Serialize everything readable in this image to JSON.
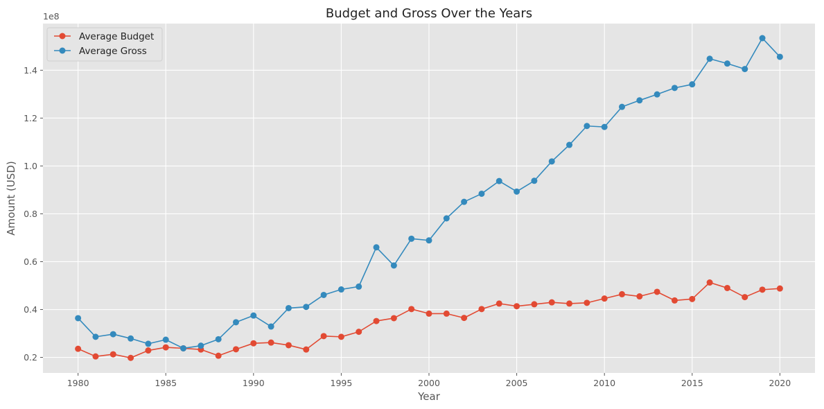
{
  "chart_data": {
    "type": "line",
    "title": "Budget and Gross Over the Years",
    "xlabel": "Year",
    "ylabel": "Amount (USD)",
    "y_offset_text": "1e8",
    "xlim": [
      1978.0,
      2022.0
    ],
    "ylim": [
      13500000,
      159500000
    ],
    "x_ticks": [
      1980,
      1985,
      1990,
      1995,
      2000,
      2005,
      2010,
      2015,
      2020
    ],
    "y_ticks": [
      20000000,
      40000000,
      60000000,
      80000000,
      100000000,
      120000000,
      140000000
    ],
    "y_tick_labels": [
      "0.2",
      "0.4",
      "0.6",
      "0.8",
      "1.0",
      "1.2",
      "1.4"
    ],
    "grid": true,
    "legend_position": "top-left",
    "x": [
      1980,
      1981,
      1982,
      1983,
      1984,
      1985,
      1986,
      1987,
      1988,
      1989,
      1990,
      1991,
      1992,
      1993,
      1994,
      1995,
      1996,
      1997,
      1998,
      1999,
      2000,
      2001,
      2002,
      2003,
      2004,
      2005,
      2006,
      2007,
      2008,
      2009,
      2010,
      2011,
      2012,
      2013,
      2014,
      2015,
      2016,
      2017,
      2018,
      2019,
      2020
    ],
    "series": [
      {
        "name": "Average Budget",
        "color": "#E24A33",
        "values": [
          23600000,
          20400000,
          21300000,
          19800000,
          22900000,
          24200000,
          23800000,
          23300000,
          20700000,
          23400000,
          25900000,
          26200000,
          25100000,
          23300000,
          28900000,
          28600000,
          30700000,
          35200000,
          36400000,
          40200000,
          38300000,
          38300000,
          36500000,
          40200000,
          42500000,
          41400000,
          42200000,
          43000000,
          42500000,
          42800000,
          44600000,
          46400000,
          45500000,
          47400000,
          43800000,
          44400000,
          51300000,
          49000000,
          45200000,
          48300000,
          48800000
        ]
      },
      {
        "name": "Average Gross",
        "color": "#348ABD",
        "values": [
          36400000,
          28600000,
          29700000,
          27900000,
          25700000,
          27400000,
          23800000,
          24900000,
          27600000,
          34700000,
          37500000,
          32900000,
          40600000,
          41100000,
          46100000,
          48400000,
          49600000,
          66000000,
          58400000,
          69600000,
          68900000,
          78100000,
          85000000,
          88400000,
          93700000,
          89300000,
          93800000,
          101900000,
          108800000,
          116700000,
          116300000,
          124700000,
          127400000,
          129900000,
          132600000,
          134100000,
          144800000,
          142800000,
          140500000,
          153400000,
          145600000
        ]
      }
    ]
  }
}
